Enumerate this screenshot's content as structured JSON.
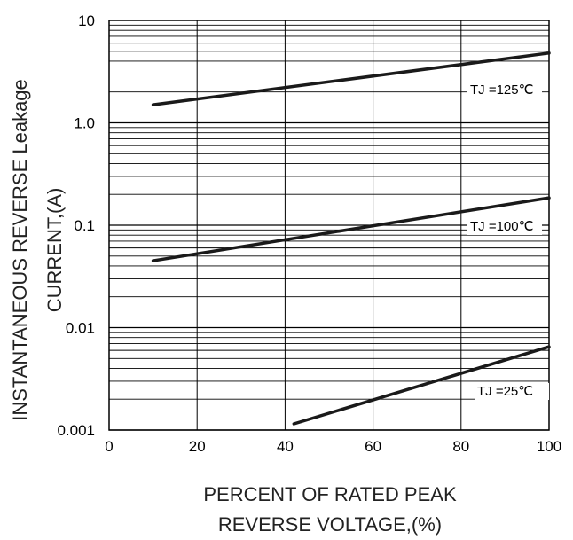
{
  "chart_data": {
    "type": "line",
    "ylabel_line1": "INSTANTANEOUS REVERSE Leakage",
    "ylabel_line2": "CURRENT,(A)",
    "xlabel_line1": "PERCENT OF RATED PEAK",
    "xlabel_line2": "REVERSE VOLTAGE,(%)",
    "xlim": [
      0,
      100
    ],
    "ylim": [
      0.001,
      10
    ],
    "yscale": "log",
    "x_ticks": [
      {
        "value": 0,
        "label": "0"
      },
      {
        "value": 20,
        "label": "20"
      },
      {
        "value": 40,
        "label": "40"
      },
      {
        "value": 60,
        "label": "60"
      },
      {
        "value": 80,
        "label": "80"
      },
      {
        "value": 100,
        "label": "100"
      }
    ],
    "y_ticks": [
      {
        "value": 10,
        "label": "10"
      },
      {
        "value": 1,
        "label": "1.0"
      },
      {
        "value": 0.1,
        "label": "0.1"
      },
      {
        "value": 0.01,
        "label": "0.01"
      },
      {
        "value": 0.001,
        "label": "0.001"
      }
    ],
    "grid": true,
    "series": [
      {
        "name": "TJ =125℃",
        "x": [
          10,
          100
        ],
        "values": [
          1.5,
          4.8
        ]
      },
      {
        "name": "TJ =100℃",
        "x": [
          10,
          100
        ],
        "values": [
          0.045,
          0.185
        ]
      },
      {
        "name": "TJ =25℃",
        "x": [
          42,
          100
        ],
        "values": [
          0.00115,
          0.0065
        ]
      }
    ]
  }
}
